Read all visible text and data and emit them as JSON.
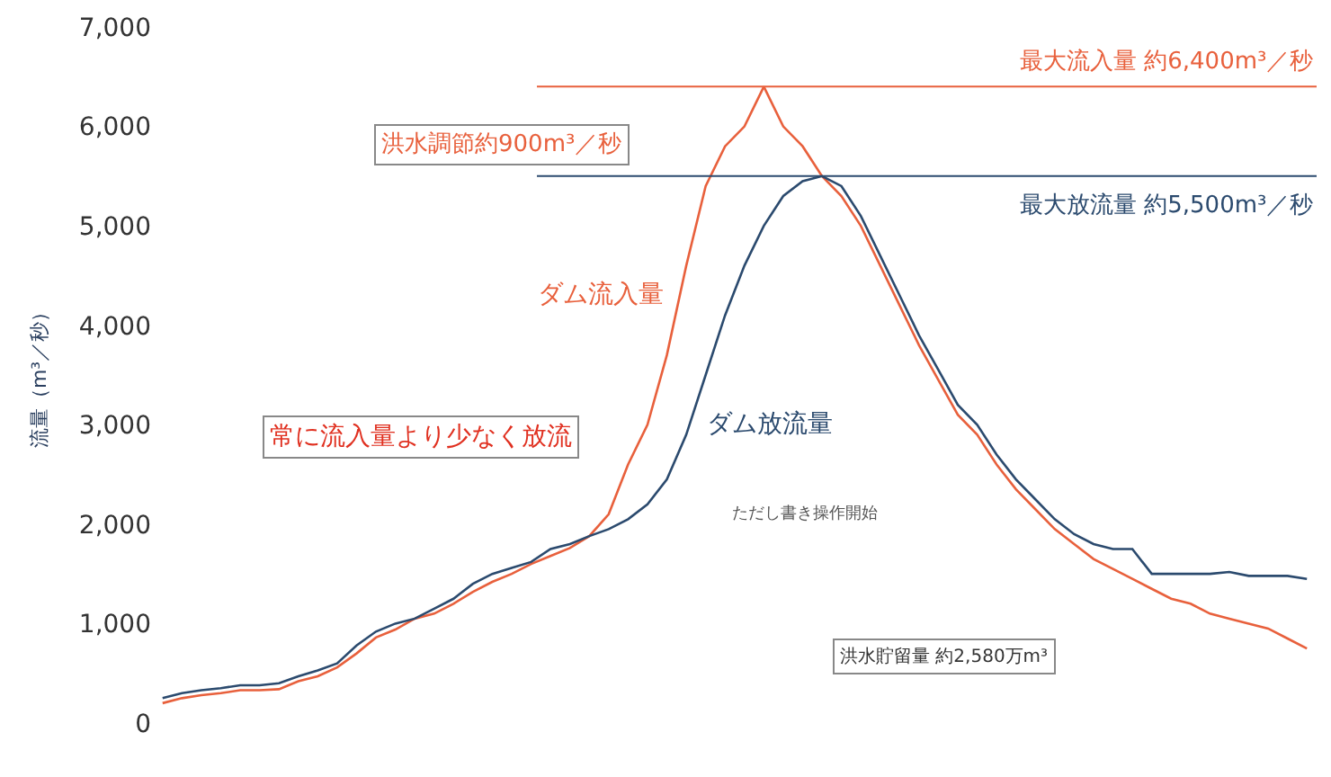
{
  "chart_data": {
    "type": "line",
    "ylabel": "流量（m³／秒）",
    "categories": [
      null,
      null,
      null,
      null,
      null,
      null,
      null,
      null,
      null,
      null,
      null,
      null,
      null,
      null,
      null,
      null,
      null,
      null,
      null,
      null,
      null,
      null,
      null,
      null,
      null,
      null,
      null,
      null,
      null,
      null,
      null,
      null,
      null,
      null,
      null,
      null,
      null,
      null,
      null,
      null,
      null,
      null,
      null,
      null,
      null,
      null,
      null,
      null,
      null,
      null,
      null,
      null,
      null,
      null,
      null,
      null,
      null,
      null,
      null,
      null
    ],
    "series": [
      {
        "name": "ダム流入量",
        "color": "#e8603c",
        "values": [
          200,
          250,
          280,
          300,
          330,
          330,
          340,
          420,
          470,
          560,
          700,
          860,
          940,
          1050,
          1100,
          1200,
          1320,
          1420,
          1500,
          1600,
          1680,
          1760,
          1880,
          2100,
          2600,
          3000,
          3700,
          4600,
          5400,
          5800,
          6000,
          6400,
          6000,
          5800,
          5500,
          5300,
          5000,
          4600,
          4200,
          3800,
          3450,
          3100,
          2900,
          2600,
          2350,
          2150,
          1950,
          1800,
          1650,
          1550,
          1450,
          1350,
          1250,
          1200,
          1100,
          1050,
          1000,
          950,
          850,
          750
        ]
      },
      {
        "name": "ダム放流量",
        "color": "#2b4a6e",
        "values": [
          250,
          300,
          330,
          350,
          380,
          380,
          400,
          470,
          530,
          600,
          780,
          920,
          1000,
          1050,
          1150,
          1250,
          1400,
          1500,
          1560,
          1620,
          1750,
          1800,
          1880,
          1950,
          2050,
          2200,
          2450,
          2900,
          3500,
          4100,
          4600,
          5000,
          5300,
          5450,
          5500,
          5400,
          5100,
          4700,
          4300,
          3900,
          3550,
          3200,
          3000,
          2700,
          2450,
          2250,
          2050,
          1900,
          1800,
          1750,
          1750,
          1500,
          1500,
          1500,
          1500,
          1520,
          1480,
          1480,
          1480,
          1450
        ]
      }
    ],
    "ylim": [
      0,
      7000
    ],
    "yticks": [
      {
        "value": 0,
        "label": "0"
      },
      {
        "value": 1000,
        "label": "1,000"
      },
      {
        "value": 2000,
        "label": "2,000"
      },
      {
        "value": 3000,
        "label": "3,000"
      },
      {
        "value": 4000,
        "label": "4,000"
      },
      {
        "value": 5000,
        "label": "5,000"
      },
      {
        "value": 6000,
        "label": "6,000"
      },
      {
        "value": 7000,
        "label": "7,000"
      }
    ],
    "ref_lines": [
      {
        "axis": "y",
        "value": 6400,
        "label": "最大流入量 約6,400m³／秒",
        "color": "#e8603c"
      },
      {
        "axis": "y",
        "value": 5500,
        "label": "最大放流量 約5,500m³／秒",
        "color": "#2b4a6e"
      }
    ],
    "annotations": [
      "洪水調節約900m³／秒",
      "常に流入量より少なく放流",
      "ただし書き操作開始",
      "洪水貯留量 約2,580万m³"
    ],
    "tick_labels": "y",
    "legend": false,
    "marker": "none",
    "line_style": "solid"
  }
}
